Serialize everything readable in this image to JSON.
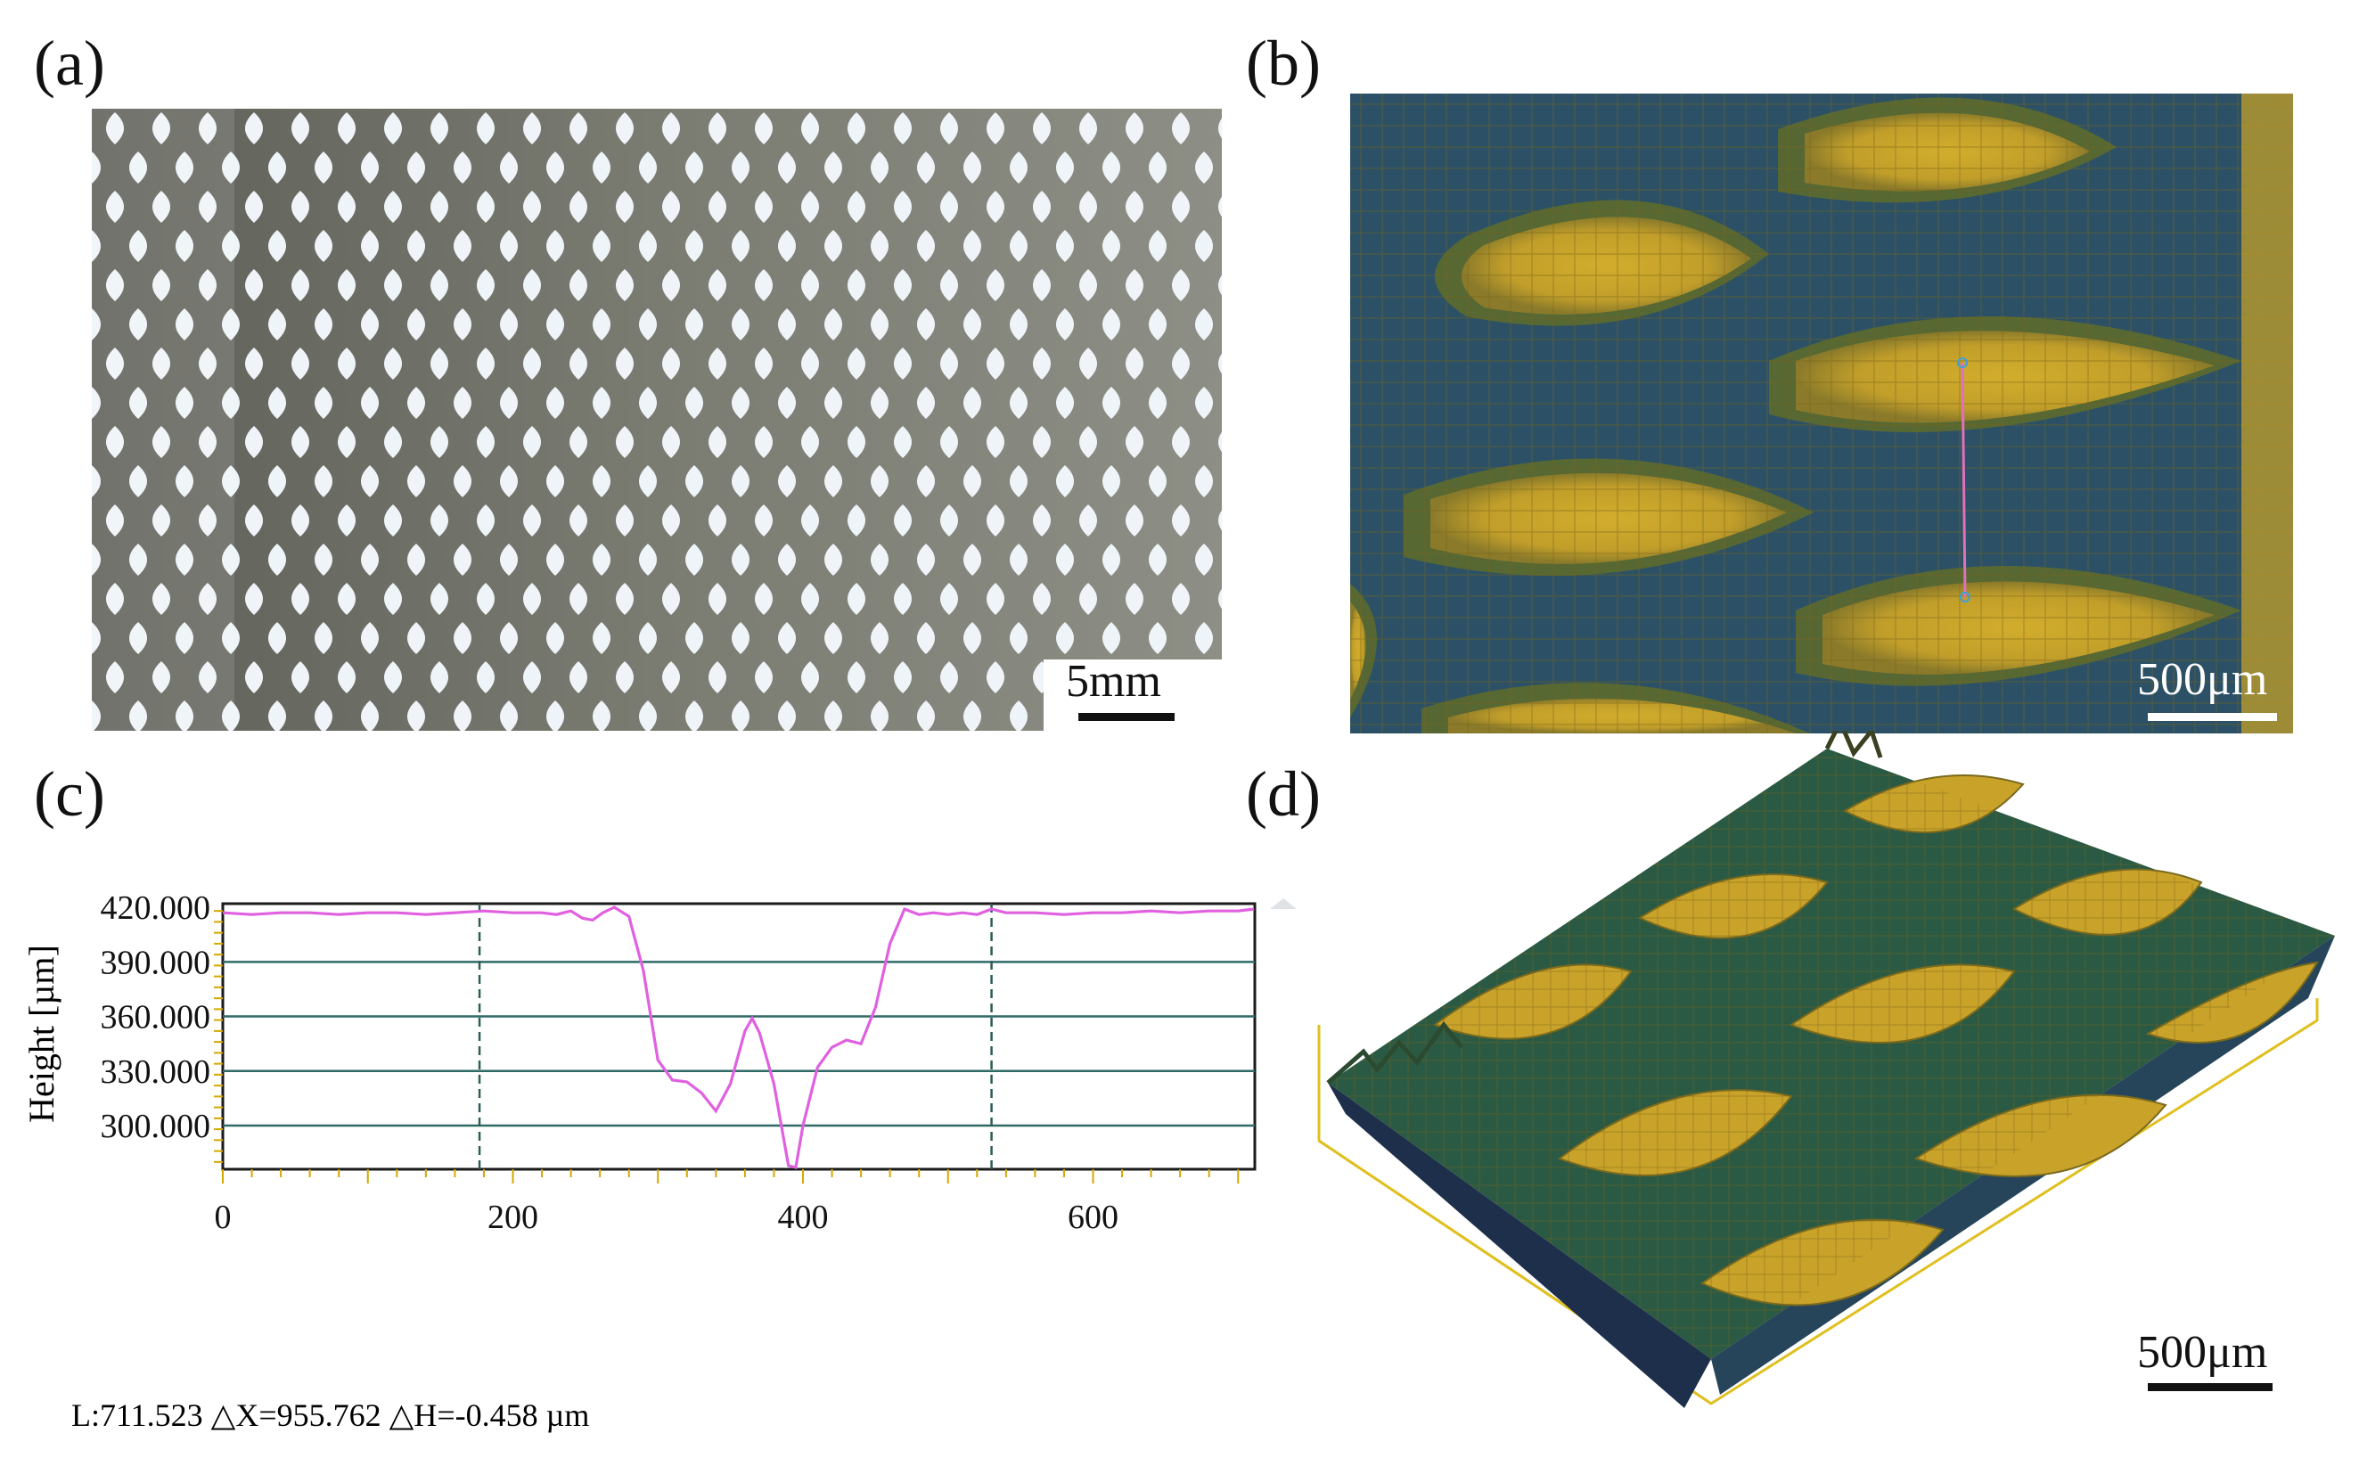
{
  "panels": {
    "a": {
      "label": "(a)",
      "scale": "5mm"
    },
    "b": {
      "label": "(b)",
      "scale": "500μm"
    },
    "c": {
      "label": "(c)"
    },
    "d": {
      "label": "(d)",
      "scale": "500μm"
    }
  },
  "colors": {
    "mesh_bg": "#6f7066",
    "mesh_hole": "#eef4f8",
    "gold": "#c9a62a",
    "gold_dark": "#8a7420",
    "blue_green": "#2e5a6e",
    "navy": "#1d2a6a",
    "profile_line": "#e060e0",
    "grid": "#2f6a66"
  },
  "chart_data": {
    "type": "line",
    "title": "",
    "xlabel": "",
    "ylabel": "Height [µm]",
    "xlim": [
      0,
      711.523
    ],
    "ylim": [
      276,
      422
    ],
    "y_ticks": [
      "420.000",
      "390.000",
      "360.000",
      "330.000",
      "300.000"
    ],
    "y_tick_values": [
      420,
      390,
      360,
      330,
      300
    ],
    "x_ticks": [
      "0",
      "200",
      "400",
      "600"
    ],
    "x_tick_values": [
      0,
      200,
      400,
      600
    ],
    "cursor_x": [
      177,
      530
    ],
    "series": [
      {
        "name": "profile",
        "x": [
          0,
          20,
          40,
          60,
          80,
          100,
          120,
          140,
          160,
          180,
          200,
          220,
          230,
          240,
          248,
          255,
          262,
          270,
          280,
          290,
          300,
          310,
          320,
          330,
          340,
          350,
          360,
          365,
          370,
          380,
          390,
          395,
          400,
          410,
          420,
          430,
          440,
          450,
          460,
          470,
          480,
          490,
          500,
          510,
          520,
          530,
          540,
          560,
          580,
          600,
          620,
          640,
          660,
          680,
          700,
          711
        ],
        "y": [
          417,
          416,
          417,
          417,
          416,
          417,
          417,
          416,
          417,
          418,
          417,
          417,
          416,
          418,
          414,
          413,
          417,
          420,
          415,
          385,
          336,
          325,
          324,
          318,
          308,
          323,
          352,
          359,
          351,
          323,
          278,
          277,
          300,
          332,
          343,
          347,
          345,
          365,
          400,
          419,
          416,
          417,
          416,
          417,
          416,
          419,
          417,
          417,
          416,
          417,
          417,
          418,
          417,
          418,
          418,
          419
        ]
      }
    ],
    "footer": "L:711.523     △X=955.762     △H=-0.458  µm"
  }
}
